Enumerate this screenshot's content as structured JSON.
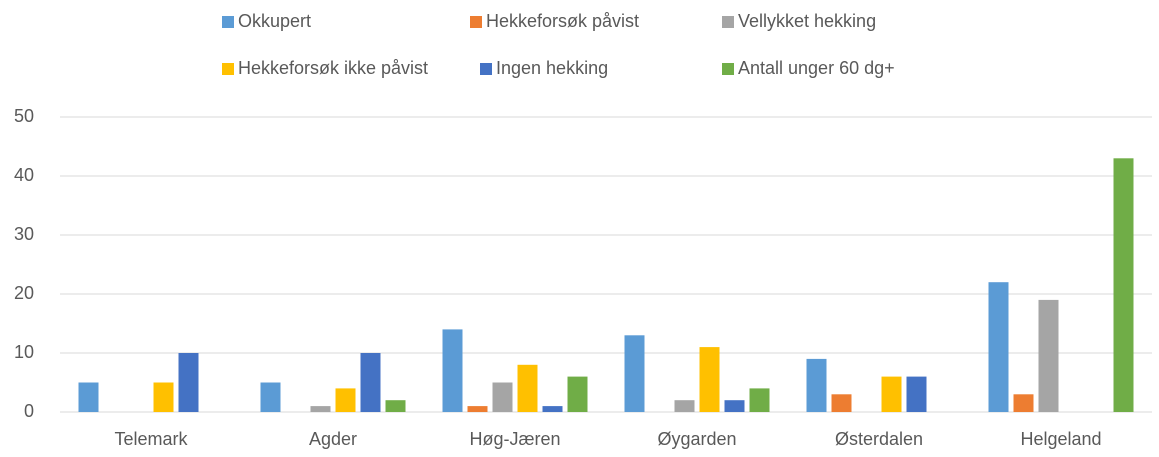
{
  "chart_data": {
    "type": "bar",
    "categories": [
      "Telemark",
      "Agder",
      "Høg-Jæren",
      "Øygarden",
      "Østerdalen",
      "Helgeland"
    ],
    "series": [
      {
        "name": "Okkupert",
        "color": "#5b9bd5",
        "values": [
          5,
          5,
          14,
          13,
          9,
          22
        ]
      },
      {
        "name": "Hekkeforsøk påvist",
        "color": "#ed7d31",
        "values": [
          0,
          0,
          1,
          0,
          3,
          3
        ]
      },
      {
        "name": "Vellykket hekking",
        "color": "#a5a5a5",
        "values": [
          0,
          1,
          5,
          2,
          0,
          19
        ]
      },
      {
        "name": "Hekkeforsøk ikke påvist",
        "color": "#ffc000",
        "values": [
          5,
          4,
          8,
          11,
          6,
          0
        ]
      },
      {
        "name": "Ingen hekking",
        "color": "#4472c4",
        "values": [
          10,
          10,
          1,
          2,
          6,
          0
        ]
      },
      {
        "name": "Antall unger 60 dg+",
        "color": "#70ad47",
        "values": [
          0,
          2,
          6,
          4,
          0,
          43
        ]
      }
    ],
    "ylim": [
      0,
      50
    ],
    "yticks": [
      0,
      10,
      20,
      30,
      40,
      50
    ],
    "grid": true,
    "legend": "top"
  }
}
